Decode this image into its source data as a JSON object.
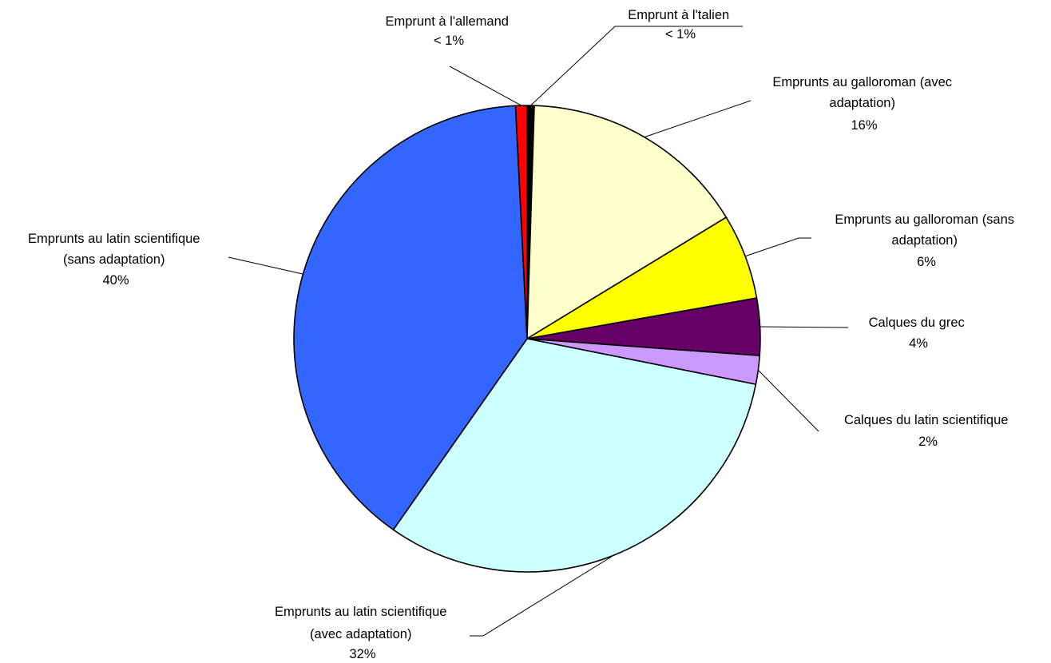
{
  "chart_data": {
    "type": "pie",
    "title": "",
    "legend": "none",
    "slices": [
      {
        "label": "Emprunt à l'talien",
        "value": 0.5,
        "display": "< 1%",
        "color": "#000000"
      },
      {
        "label": "Emprunts au galloroman (avec adaptation)",
        "value": 16,
        "display": "16%",
        "color": "#FFFFCC"
      },
      {
        "label": "Emprunts au galloroman (sans adaptation)",
        "value": 6,
        "display": "6%",
        "color": "#FFFF00"
      },
      {
        "label": "Calques du grec",
        "value": 4,
        "display": "4%",
        "color": "#660066"
      },
      {
        "label": "Calques du latin scientifique",
        "value": 2,
        "display": "2%",
        "color": "#CC99FF"
      },
      {
        "label": "Emprunts au latin scientifique (avec adaptation)",
        "value": 32,
        "display": "32%",
        "color": "#CCFFFF"
      },
      {
        "label": "Emprunts au latin scientifique (sans adaptation)",
        "value": 40,
        "display": "40%",
        "color": "#3366FF"
      },
      {
        "label": "Emprunt à l'allemand",
        "value": 0.8,
        "display": "< 1%",
        "color": "#FF0000"
      }
    ]
  }
}
